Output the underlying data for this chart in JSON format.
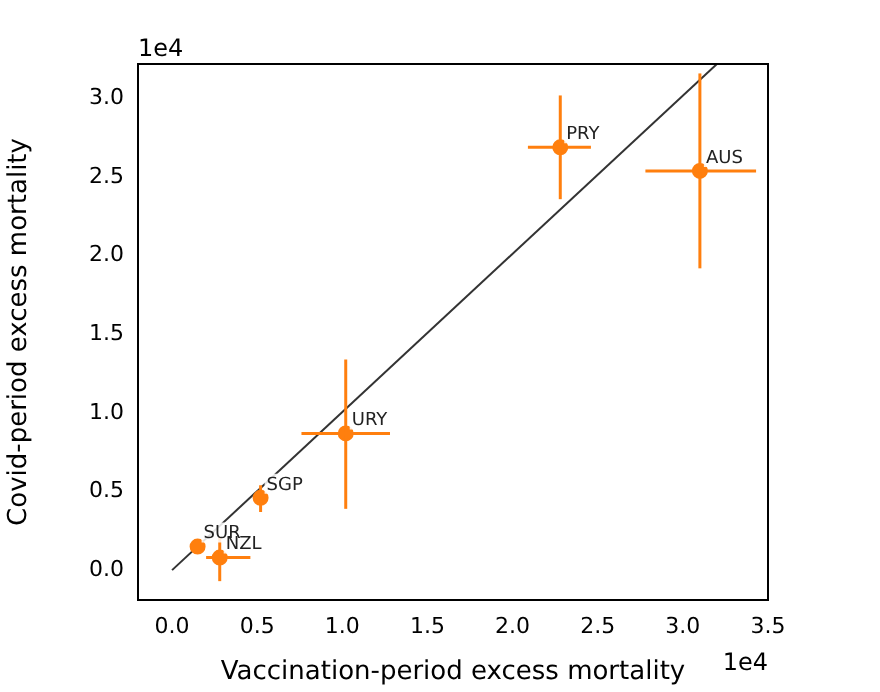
{
  "chart_data": {
    "type": "scatter",
    "xlabel": "Vaccination-period excess mortality",
    "ylabel": "Covid-period excess mortality",
    "xlim": [
      -0.2,
      3.5
    ],
    "ylim": [
      -0.19,
      3.22
    ],
    "xticks": [
      {
        "value": 0,
        "label": "0.0"
      },
      {
        "value": 0.5,
        "label": "0.5"
      },
      {
        "value": 1,
        "label": "1.0"
      },
      {
        "value": 1.5,
        "label": "1.5"
      },
      {
        "value": 2,
        "label": "2.0"
      },
      {
        "value": 2.5,
        "label": "2.5"
      },
      {
        "value": 3,
        "label": "3.0"
      },
      {
        "value": 3.5,
        "label": "3.5"
      }
    ],
    "yticks": [
      {
        "value": 0,
        "label": "0.0"
      },
      {
        "value": 0.5,
        "label": "0.5"
      },
      {
        "value": 1,
        "label": "1.0"
      },
      {
        "value": 1.5,
        "label": "1.5"
      },
      {
        "value": 2,
        "label": "2.0"
      },
      {
        "value": 2.5,
        "label": "2.5"
      },
      {
        "value": 3,
        "label": "3.0"
      }
    ],
    "grid": false,
    "legend": false,
    "marker": "circle",
    "series": [
      {
        "type": "scatter",
        "color": "#ff7f0e",
        "x": [
          0.15,
          0.28,
          0.52,
          1.02,
          2.28,
          3.1
        ],
        "values": [
          0.15,
          0.08,
          0.46,
          0.87,
          2.69,
          2.54
        ],
        "errors": [
          null,
          [
            -0.07,
            0.21
          ],
          [
            0.37,
            0.54
          ],
          [
            0.39,
            1.34
          ],
          [
            2.36,
            3.02
          ],
          [
            1.92,
            3.16
          ]
        ],
        "xerrors": [
          null,
          [
            0.2,
            0.46
          ],
          null,
          [
            0.76,
            1.28
          ],
          [
            2.09,
            2.46
          ],
          [
            2.78,
            3.43
          ]
        ]
      },
      {
        "type": "line",
        "color": "#333333",
        "x": [
          0,
          3.2
        ],
        "values": [
          0,
          3.22
        ],
        "marker": "none",
        "line_style": "solid"
      }
    ],
    "annotations": [
      {
        "text": "SUR",
        "x": 0.15,
        "y": 0.15
      },
      {
        "text": "NZL",
        "x": 0.28,
        "y": 0.08
      },
      {
        "text": "SGP",
        "x": 0.52,
        "y": 0.46
      },
      {
        "text": "URY",
        "x": 1.02,
        "y": 0.87
      },
      {
        "text": "PRY",
        "x": 2.28,
        "y": 2.69
      },
      {
        "text": "AUS",
        "x": 3.1,
        "y": 2.54
      },
      "1e4",
      "1e4"
    ]
  }
}
